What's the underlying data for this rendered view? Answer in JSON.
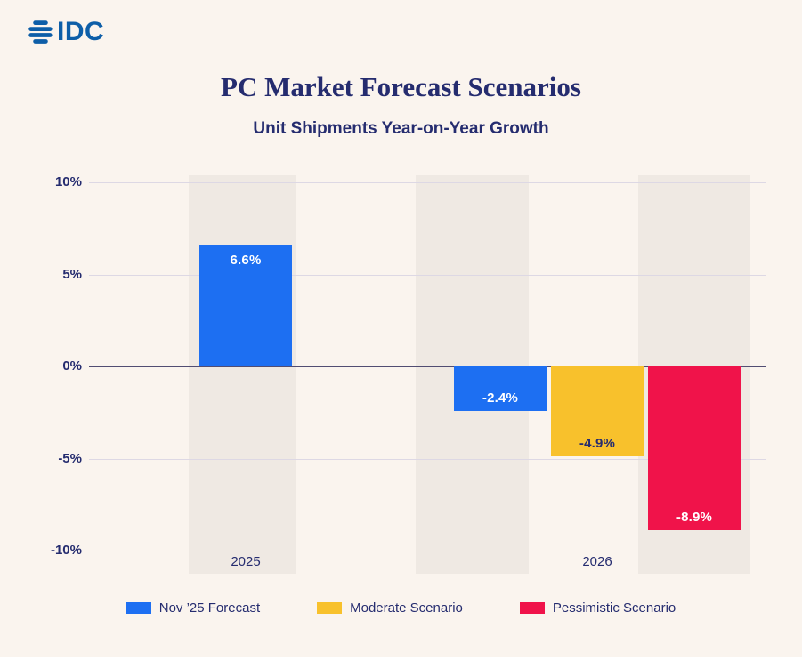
{
  "logo": {
    "text": "IDC"
  },
  "header": {
    "title": "PC Market Forecast Scenarios",
    "subtitle": "Unit Shipments Year-on-Year Growth"
  },
  "colors": {
    "background": "#FAF4EE",
    "column_band": "#EFE9E3",
    "navy_text": "#252C6F",
    "logo_blue": "#0D5EA8",
    "gridline": "#DDD8E4",
    "zero_line": "#514D72",
    "blue": "#1D6FF2",
    "yellow": "#F8C12C",
    "red": "#F0134A"
  },
  "chart_data": {
    "type": "bar",
    "title": "PC Market Forecast Scenarios",
    "subtitle": "Unit Shipments Year-on-Year Growth",
    "categories": [
      "2025",
      "2026"
    ],
    "series": [
      {
        "name": "Nov ’25 Forecast",
        "color": "#1D6FF2",
        "label_color": "#FFFFFF",
        "values": [
          6.6,
          -2.4
        ],
        "labels": [
          "6.6%",
          "-2.4%"
        ]
      },
      {
        "name": "Moderate Scenario",
        "color": "#F8C12C",
        "label_color": "#252C6F",
        "values": [
          null,
          -4.9
        ],
        "labels": [
          null,
          "-4.9%"
        ]
      },
      {
        "name": "Pessimistic Scenario",
        "color": "#F0134A",
        "label_color": "#FFFFFF",
        "values": [
          null,
          -8.9
        ],
        "labels": [
          null,
          "-8.9%"
        ]
      }
    ],
    "ylim": [
      -10,
      10
    ],
    "y_ticks": [
      {
        "label": "10%",
        "value": 10
      },
      {
        "label": "5%",
        "value": 5
      },
      {
        "label": "0%",
        "value": 0
      },
      {
        "label": "-5%",
        "value": -5
      },
      {
        "label": "-10%",
        "value": -10
      }
    ],
    "grid": true,
    "legend_position": "bottom",
    "legend": [
      "Nov ’25 Forecast",
      "Moderate Scenario",
      "Pessimistic Scenario"
    ]
  }
}
